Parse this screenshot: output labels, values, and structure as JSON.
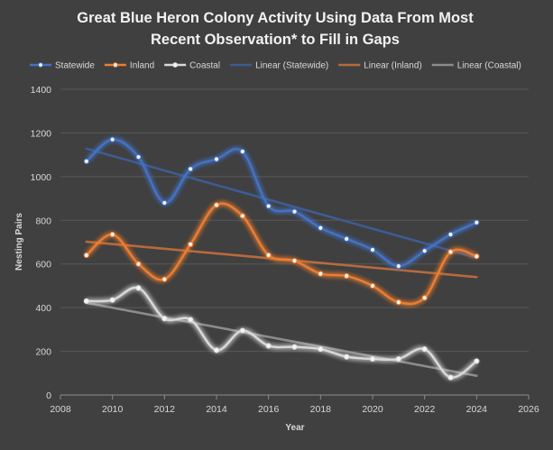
{
  "chart_data": {
    "type": "line",
    "title_lines": [
      "Great Blue Heron Colony Activity Using Data From Most",
      "Recent Observation* to Fill in Gaps"
    ],
    "xlabel": "Year",
    "ylabel": "Nesting Pairs",
    "xlim": [
      2008,
      2026
    ],
    "ylim": [
      0,
      1400
    ],
    "x_ticks": [
      2008,
      2010,
      2012,
      2014,
      2016,
      2018,
      2020,
      2022,
      2024,
      2026
    ],
    "y_ticks": [
      0,
      200,
      400,
      600,
      800,
      1000,
      1200,
      1400
    ],
    "grid": true,
    "legend_position": "top",
    "x": [
      2009,
      2010,
      2011,
      2012,
      2013,
      2014,
      2015,
      2016,
      2017,
      2018,
      2019,
      2020,
      2021,
      2022,
      2023,
      2024
    ],
    "series": [
      {
        "name": "Statewide",
        "color": "#4472C4",
        "values": [
          1070,
          1170,
          1090,
          880,
          1035,
          1080,
          1115,
          865,
          840,
          765,
          715,
          665,
          590,
          660,
          735,
          790
        ]
      },
      {
        "name": "Inland",
        "color": "#ED7D31",
        "values": [
          640,
          735,
          600,
          530,
          690,
          870,
          820,
          640,
          615,
          555,
          545,
          500,
          425,
          445,
          655,
          635
        ]
      },
      {
        "name": "Coastal",
        "color": "#D9D9D9",
        "values": [
          430,
          435,
          490,
          350,
          345,
          205,
          295,
          225,
          220,
          210,
          175,
          165,
          165,
          210,
          80,
          155
        ]
      }
    ],
    "trendlines": [
      {
        "name": "Linear (Statewide)",
        "color": "#3D5C94",
        "start": [
          2009,
          1128
        ],
        "end": [
          2024,
          628
        ]
      },
      {
        "name": "Linear (Inland)",
        "color": "#B86A3C",
        "start": [
          2009,
          702
        ],
        "end": [
          2024,
          540
        ]
      },
      {
        "name": "Linear (Coastal)",
        "color": "#8C8C8C",
        "start": [
          2009,
          422
        ],
        "end": [
          2024,
          88
        ]
      }
    ]
  }
}
